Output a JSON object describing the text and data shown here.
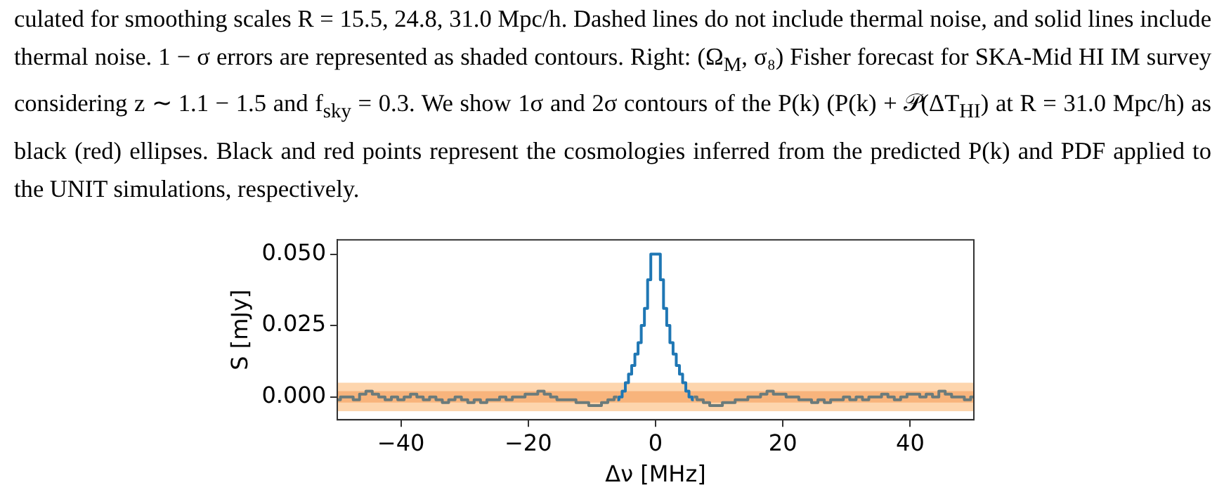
{
  "chart_data": {
    "type": "step",
    "annotations": [
      "culated for smoothing scales R = 15.5, 24.8, 31.0 Mpc/h. Dashed lines do not include thermal noise, and solid lines include thermal noise. 1 − σ errors are represented as shaded contours. Right: (Ω$_{M}$, σ₈) Fisher forecast for SKA-Mid HI IM survey considering z ∼ 1.1 − 1.5 and f$_{sky}$ = 0.3. We show 1σ and 2σ contours of the P(k) (P(k) + 𝒫(ΔT$_{HI}$) at R = 31.0 Mpc/h) as black (red) ellipses. Black and red points represent the cosmologies inferred from the predicted P(k) and PDF applied to the UNIT simulations, respectively."
    ],
    "xlabel": "Δν [MHz]",
    "ylabel": "S [mJy]",
    "xlim": [
      -50,
      50
    ],
    "ylim": [
      -0.008,
      0.055
    ],
    "xticks": [
      {
        "value": -40,
        "label": "−40"
      },
      {
        "value": -20,
        "label": "−20"
      },
      0,
      20,
      40
    ],
    "yticks": [
      {
        "value": 0,
        "label": "0.000"
      },
      {
        "value": 0.025,
        "label": "0.025"
      },
      {
        "value": 0.05,
        "label": "0.050"
      }
    ],
    "bands": [
      {
        "axis": "y",
        "from": -0.005,
        "to": 0.005,
        "color": "#fdd5ad"
      },
      {
        "axis": "y",
        "from": -0.002,
        "to": 0.002,
        "color": "#f8b47c"
      }
    ],
    "grid": false,
    "legend": false,
    "marker": "none",
    "series": [
      {
        "color": "#1f77b4",
        "x": [
          -6,
          -5.5,
          -5,
          -4.5,
          -4,
          -3.5,
          -3,
          -2.5,
          -2,
          -1.5,
          -1,
          -0.5,
          0,
          0.5,
          1,
          1.5,
          2,
          2.5,
          3,
          3.5,
          4,
          4.5,
          5,
          5.5,
          6
        ],
        "values": [
          -0.001,
          0,
          0.002,
          0.005,
          0.008,
          0.011,
          0.015,
          0.019,
          0.025,
          0.031,
          0.041,
          0.05,
          0.05,
          0.05,
          0.041,
          0.031,
          0.025,
          0.019,
          0.015,
          0.011,
          0.008,
          0.005,
          0.002,
          0,
          -0.001
        ]
      },
      {
        "color": "#6b7b7b",
        "x": [
          -50,
          -49,
          -48,
          -47,
          -46,
          -45,
          -44,
          -43,
          -42,
          -41,
          -40,
          -39,
          -38,
          -37,
          -36,
          -35,
          -34,
          -33,
          -32,
          -31,
          -30,
          -29,
          -28,
          -27,
          -26,
          -25,
          -24,
          -23,
          -22,
          -21,
          -20,
          -19,
          -18,
          -17,
          -16,
          -15,
          -14,
          -13,
          -12,
          -11,
          -10,
          -9,
          -8,
          -7,
          -6,
          0,
          6,
          7,
          8,
          9,
          10,
          11,
          12,
          13,
          14,
          15,
          16,
          17,
          18,
          19,
          20,
          21,
          22,
          23,
          24,
          25,
          26,
          27,
          28,
          29,
          30,
          31,
          32,
          33,
          34,
          35,
          36,
          37,
          38,
          39,
          40,
          41,
          42,
          43,
          44,
          45,
          46,
          47,
          48,
          49,
          50
        ],
        "values": [
          -0.001,
          0,
          0,
          -0.001,
          0.001,
          0.002,
          0.001,
          0,
          -0.001,
          0,
          -0.001,
          0,
          0.001,
          0,
          -0.001,
          0,
          -0.001,
          -0.002,
          -0.001,
          0,
          -0.001,
          -0.002,
          -0.001,
          -0.002,
          -0.001,
          -0.001,
          0,
          -0.001,
          0,
          0,
          0.001,
          0.001,
          0.002,
          0.001,
          0,
          -0.001,
          -0.001,
          -0.001,
          -0.002,
          -0.002,
          -0.003,
          -0.003,
          -0.002,
          -0.001,
          0,
          null,
          0,
          -0.001,
          -0.002,
          -0.003,
          -0.003,
          -0.002,
          -0.002,
          -0.001,
          -0.001,
          0,
          0,
          0.001,
          0.002,
          0.001,
          0.001,
          0,
          0,
          -0.001,
          -0.001,
          -0.002,
          -0.001,
          -0.002,
          -0.001,
          -0.001,
          0,
          -0.001,
          0,
          -0.001,
          0,
          0,
          0.001,
          0,
          -0.001,
          0,
          0.001,
          0.001,
          0,
          0.001,
          0,
          0.002,
          0.001,
          0,
          0,
          -0.001,
          0
        ]
      }
    ]
  }
}
